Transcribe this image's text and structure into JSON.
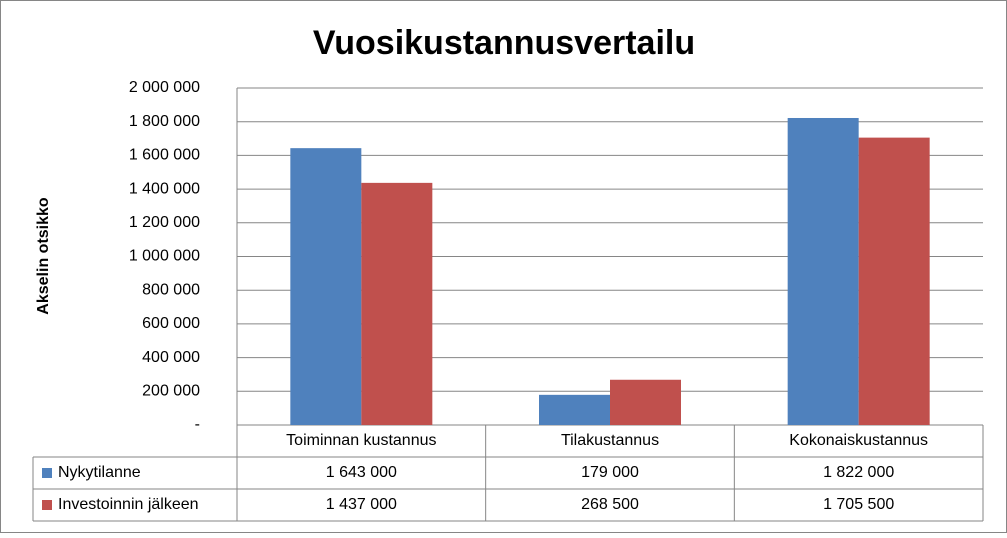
{
  "chart_data": {
    "type": "bar",
    "title": "Vuosikustannusvertailu",
    "y_label": "Akselin otsikko",
    "categories": [
      "Toiminnan kustannus",
      "Tilakustannus",
      "Kokonaiskustannus"
    ],
    "series": [
      {
        "name": "Nykytilanne",
        "color": "#4f81bd",
        "values": [
          1643000,
          179000,
          1822000
        ],
        "value_labels": [
          "1 643 000",
          "179 000",
          "1 822 000"
        ]
      },
      {
        "name": "Investoinnin jälkeen",
        "color": "#c0504d",
        "values": [
          1437000,
          268500,
          1705500
        ],
        "value_labels": [
          "1 437 000",
          "268 500",
          "1 705 500"
        ]
      }
    ],
    "ylim": [
      0,
      2000000
    ],
    "yticks": [
      {
        "value": 0,
        "label": "-"
      },
      {
        "value": 200000,
        "label": "200 000"
      },
      {
        "value": 400000,
        "label": "400 000"
      },
      {
        "value": 600000,
        "label": "600 000"
      },
      {
        "value": 800000,
        "label": "800 000"
      },
      {
        "value": 1000000,
        "label": "1 000 000"
      },
      {
        "value": 1200000,
        "label": "1 200 000"
      },
      {
        "value": 1400000,
        "label": "1 400 000"
      },
      {
        "value": 1600000,
        "label": "1 600 000"
      },
      {
        "value": 1800000,
        "label": "1 800 000"
      },
      {
        "value": 2000000,
        "label": "2 000 000"
      }
    ],
    "grid": true
  }
}
